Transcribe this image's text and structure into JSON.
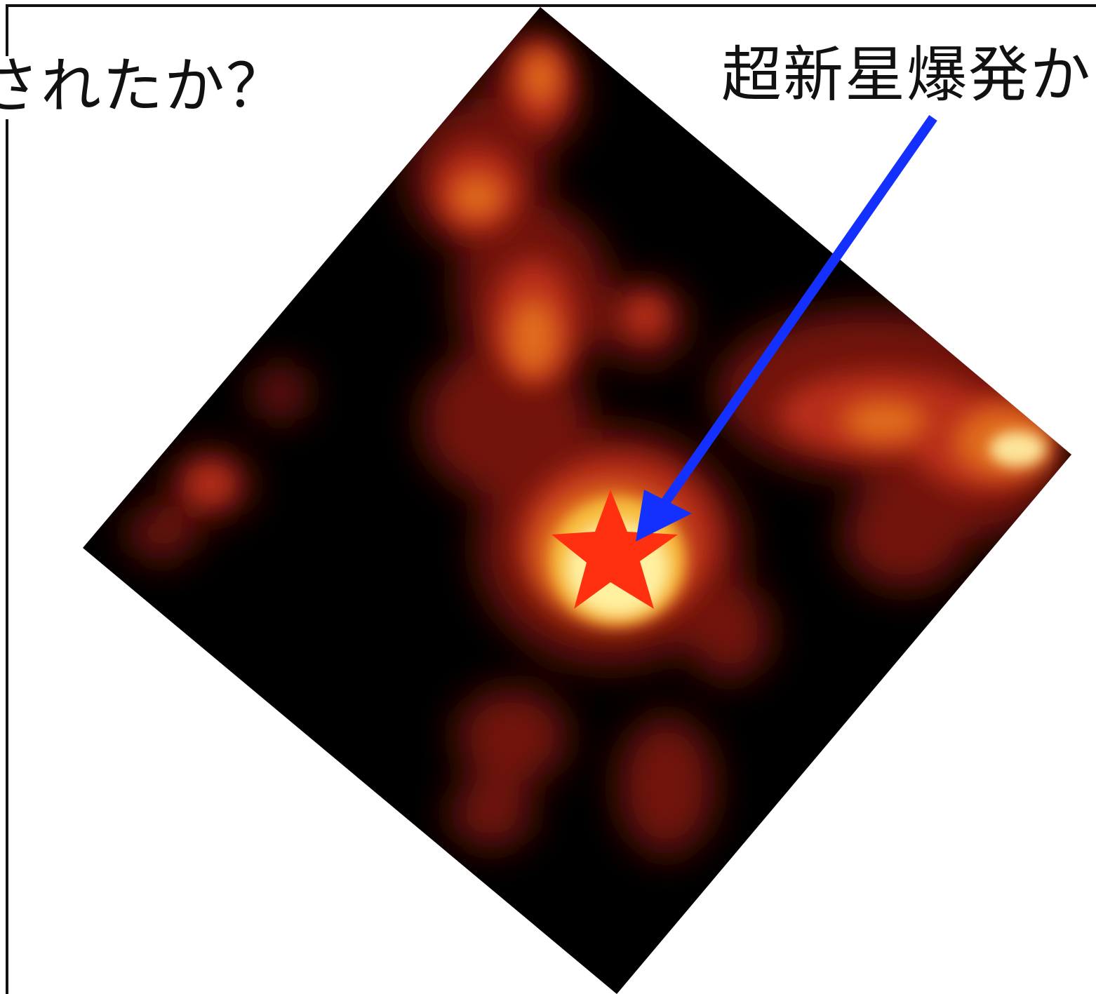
{
  "labels": {
    "left_caption": "されたか？",
    "right_caption": "超新星爆発か"
  },
  "colors": {
    "background": "#000000",
    "glow_core": "#fff3a0",
    "glow_mid": "#f5a623",
    "glow_outer": "#b2200f",
    "star_marker": "#ff3010",
    "arrow": "#1430ff",
    "frame": "#111111"
  },
  "markers": {
    "star_icon": "star-icon",
    "arrow_icon": "arrow-icon"
  }
}
